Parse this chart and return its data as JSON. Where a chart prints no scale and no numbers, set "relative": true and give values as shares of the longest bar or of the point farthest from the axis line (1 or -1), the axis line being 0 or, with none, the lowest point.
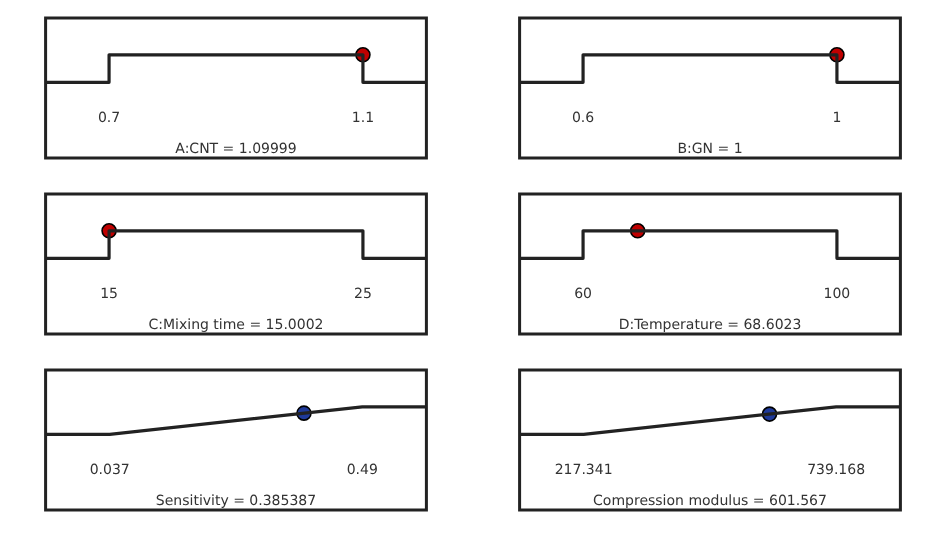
{
  "chart_data": [
    {
      "type": "line",
      "xlabel": "A:CNT = 1.09999",
      "relative": true,
      "xlim": [
        0.6,
        1.2
      ],
      "xticks": [
        0.7,
        1.1
      ],
      "grid": false,
      "legend": false,
      "series": [
        {
          "type": "line",
          "color": "#222222",
          "marker": "none",
          "x": [
            0.6,
            0.7,
            0.7,
            1.1,
            1.1,
            1.2
          ],
          "values": [
            0,
            0,
            1,
            1,
            0,
            0
          ]
        },
        {
          "type": "scatter",
          "color": "#c00000",
          "marker": "circle",
          "x": [
            1.09999
          ],
          "values": [
            1
          ]
        }
      ]
    },
    {
      "type": "line",
      "xlabel": "B:GN = 1",
      "relative": true,
      "xlim": [
        0.5,
        1.1
      ],
      "xticks": [
        0.6,
        1
      ],
      "grid": false,
      "legend": false,
      "series": [
        {
          "type": "line",
          "color": "#222222",
          "marker": "none",
          "x": [
            0.5,
            0.6,
            0.6,
            1,
            1,
            1.1
          ],
          "values": [
            0,
            0,
            1,
            1,
            0,
            0
          ]
        },
        {
          "type": "scatter",
          "color": "#c00000",
          "marker": "circle",
          "x": [
            1
          ],
          "values": [
            1
          ]
        }
      ]
    },
    {
      "type": "line",
      "xlabel": "C:Mixing time = 15.0002",
      "relative": true,
      "xlim": [
        12.5,
        27.5
      ],
      "xticks": [
        15,
        25
      ],
      "grid": false,
      "legend": false,
      "series": [
        {
          "type": "line",
          "color": "#222222",
          "marker": "none",
          "x": [
            12.5,
            15,
            15,
            25,
            25,
            27.5
          ],
          "values": [
            0,
            0,
            1,
            1,
            0,
            0
          ]
        },
        {
          "type": "scatter",
          "color": "#c00000",
          "marker": "circle",
          "x": [
            15.0002
          ],
          "values": [
            1
          ]
        }
      ]
    },
    {
      "type": "line",
      "xlabel": "D:Temperature = 68.6023",
      "relative": true,
      "xlim": [
        50,
        110
      ],
      "xticks": [
        60,
        100
      ],
      "grid": false,
      "legend": false,
      "series": [
        {
          "type": "line",
          "color": "#222222",
          "marker": "none",
          "x": [
            50,
            60,
            60,
            100,
            100,
            110
          ],
          "values": [
            0,
            0,
            1,
            1,
            0,
            0
          ]
        },
        {
          "type": "scatter",
          "color": "#c00000",
          "marker": "circle",
          "x": [
            68.6023
          ],
          "values": [
            1
          ]
        }
      ]
    },
    {
      "type": "line",
      "xlabel": "Sensitivity = 0.385387",
      "relative": true,
      "xlim": [
        -0.078,
        0.605
      ],
      "xticks": [
        0.037,
        0.49
      ],
      "grid": false,
      "legend": false,
      "series": [
        {
          "type": "line",
          "color": "#222222",
          "marker": "none",
          "x": [
            -0.078,
            0.037,
            0.49,
            0.605
          ],
          "values": [
            0,
            0,
            1,
            1
          ]
        },
        {
          "type": "scatter",
          "color": "#1f3a9a",
          "marker": "circle",
          "x": [
            0.385387
          ],
          "values": [
            0.769
          ]
        }
      ]
    },
    {
      "type": "line",
      "xlabel": "Compression modulus = 601.567",
      "relative": true,
      "xlim": [
        85,
        872
      ],
      "xticks": [
        217.341,
        739.168
      ],
      "grid": false,
      "legend": false,
      "series": [
        {
          "type": "line",
          "color": "#222222",
          "marker": "none",
          "x": [
            85,
            217.341,
            739.168,
            872
          ],
          "values": [
            0,
            0,
            1,
            1
          ]
        },
        {
          "type": "scatter",
          "color": "#1f3a9a",
          "marker": "circle",
          "x": [
            601.567
          ],
          "values": [
            0.736
          ]
        }
      ]
    }
  ]
}
